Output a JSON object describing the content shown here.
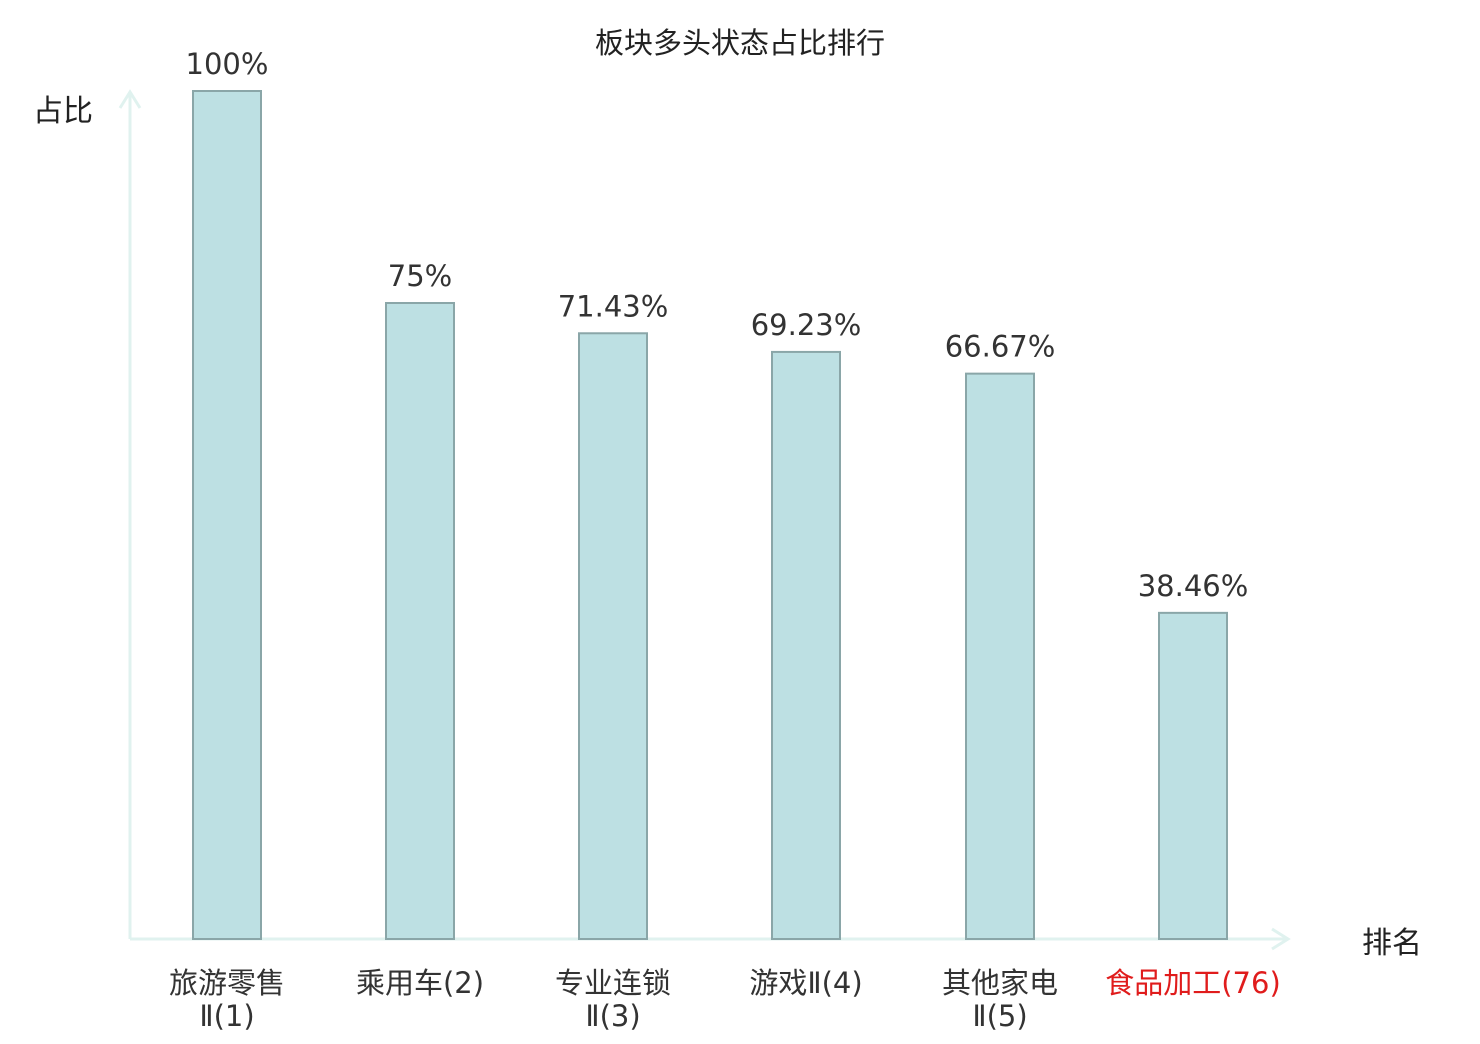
{
  "chart_data": {
    "type": "bar",
    "title": "板块多头状态占比排行",
    "ylabel": "占比",
    "xlabel": "排名",
    "categories": [
      [
        "旅游零售",
        "Ⅱ(1)"
      ],
      [
        "乘用车(2)"
      ],
      [
        "专业连锁",
        "Ⅱ(3)"
      ],
      [
        "游戏Ⅱ(4)"
      ],
      [
        "其他家电",
        "Ⅱ(5)"
      ],
      [
        "食品加工(76)"
      ]
    ],
    "values": [
      100,
      75,
      71.43,
      69.23,
      66.67,
      38.46
    ],
    "value_labels": [
      "100%",
      "75%",
      "71.43%",
      "69.23%",
      "66.67%",
      "38.46%"
    ],
    "highlight_index": 5,
    "ylim": [
      0,
      100
    ],
    "grid": false,
    "colors": {
      "bar_fill": "#bde0e3",
      "bar_stroke": "#8aa6a8",
      "axis": "#e0f2ef",
      "text": "#333333",
      "highlight_text": "#e01c1c",
      "title_text": "#222222"
    }
  }
}
